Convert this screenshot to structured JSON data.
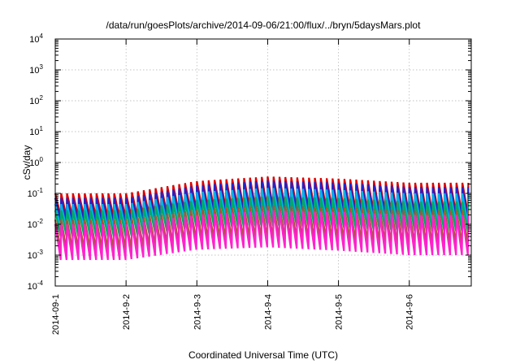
{
  "chart_data": {
    "type": "line",
    "title": "/data/run/goesPlots/archive/2014-09-06/21:00/flux/../bryn/5daysMars.plot",
    "xlabel": "Coordinated Universal Time (UTC)",
    "ylabel": "cSv/day",
    "x_ticks": [
      "2014-09-1",
      "2014-9-2",
      "2014-9-3",
      "2014-9-4",
      "2014-9-5",
      "2014-9-6"
    ],
    "x_range": [
      "2014-09-01T00:00",
      "2014-09-06T21:00"
    ],
    "y_scale": "log",
    "y_ticks": [
      {
        "mantissa": "10",
        "exp": "4"
      },
      {
        "mantissa": "10",
        "exp": "3"
      },
      {
        "mantissa": "10",
        "exp": "2"
      },
      {
        "mantissa": "10",
        "exp": "1"
      },
      {
        "mantissa": "10",
        "exp": "0"
      },
      {
        "mantissa": "10",
        "exp": "-1"
      },
      {
        "mantissa": "10",
        "exp": "-2"
      },
      {
        "mantissa": "10",
        "exp": "-3"
      },
      {
        "mantissa": "10",
        "exp": "-4"
      }
    ],
    "ylim": [
      0.0001,
      10000
    ],
    "grid": true,
    "legend": "none",
    "cycles_per_day": 12,
    "series": [
      {
        "color": "#dd0000",
        "peak": [
          0.1,
          0.1,
          0.25,
          0.35,
          0.3,
          0.22
        ],
        "trough": [
          0.018,
          0.016,
          0.03,
          0.035,
          0.03,
          0.022
        ]
      },
      {
        "color": "#2222cc",
        "peak": [
          0.07,
          0.07,
          0.18,
          0.26,
          0.22,
          0.16
        ],
        "trough": [
          0.012,
          0.011,
          0.022,
          0.025,
          0.022,
          0.016
        ]
      },
      {
        "color": "#00b4e6",
        "peak": [
          0.045,
          0.045,
          0.11,
          0.15,
          0.13,
          0.1
        ],
        "trough": [
          0.007,
          0.0065,
          0.014,
          0.015,
          0.013,
          0.01
        ]
      },
      {
        "color": "#00aa66",
        "peak": [
          0.028,
          0.028,
          0.06,
          0.08,
          0.07,
          0.055
        ],
        "trough": [
          0.004,
          0.004,
          0.008,
          0.009,
          0.008,
          0.006
        ]
      },
      {
        "color": "#aa5533",
        "peak": [
          0.014,
          0.014,
          0.03,
          0.04,
          0.035,
          0.028
        ],
        "trough": [
          0.0015,
          0.0015,
          0.003,
          0.0035,
          0.003,
          0.0022
        ]
      },
      {
        "color": "#ff22cc",
        "peak": [
          0.01,
          0.01,
          0.02,
          0.028,
          0.025,
          0.02
        ],
        "trough": [
          0.0007,
          0.0007,
          0.0015,
          0.0018,
          0.0014,
          0.001
        ]
      }
    ]
  }
}
